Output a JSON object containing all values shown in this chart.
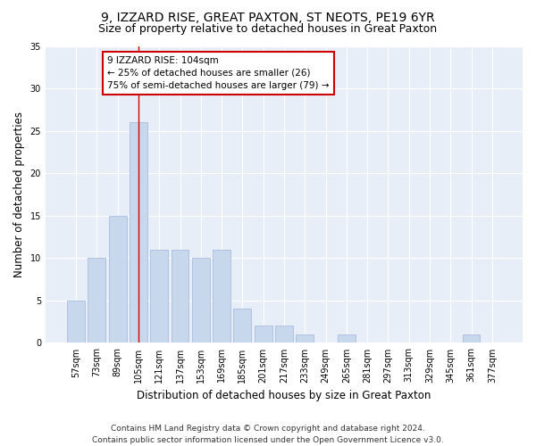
{
  "title": "9, IZZARD RISE, GREAT PAXTON, ST NEOTS, PE19 6YR",
  "subtitle": "Size of property relative to detached houses in Great Paxton",
  "xlabel": "Distribution of detached houses by size in Great Paxton",
  "ylabel": "Number of detached properties",
  "categories": [
    "57sqm",
    "73sqm",
    "89sqm",
    "105sqm",
    "121sqm",
    "137sqm",
    "153sqm",
    "169sqm",
    "185sqm",
    "201sqm",
    "217sqm",
    "233sqm",
    "249sqm",
    "265sqm",
    "281sqm",
    "297sqm",
    "313sqm",
    "329sqm",
    "345sqm",
    "361sqm",
    "377sqm"
  ],
  "values": [
    5,
    10,
    15,
    26,
    11,
    11,
    10,
    11,
    4,
    2,
    2,
    1,
    0,
    1,
    0,
    0,
    0,
    0,
    0,
    1,
    0
  ],
  "bar_color": "#c8d8ec",
  "bar_edge_color": "#aabbdd",
  "vline_x": 3,
  "vline_color": "#cc0000",
  "annotation_text": "9 IZZARD RISE: 104sqm\n← 25% of detached houses are smaller (26)\n75% of semi-detached houses are larger (79) →",
  "annotation_box_color": "#ffffff",
  "annotation_box_edge": "#cc0000",
  "ylim": [
    0,
    35
  ],
  "yticks": [
    0,
    5,
    10,
    15,
    20,
    25,
    30,
    35
  ],
  "bg_color": "#e8eef8",
  "footer": "Contains HM Land Registry data © Crown copyright and database right 2024.\nContains public sector information licensed under the Open Government Licence v3.0.",
  "title_fontsize": 10,
  "subtitle_fontsize": 9,
  "xlabel_fontsize": 8.5,
  "ylabel_fontsize": 8.5,
  "tick_fontsize": 7,
  "annot_fontsize": 7.5,
  "footer_fontsize": 6.5
}
